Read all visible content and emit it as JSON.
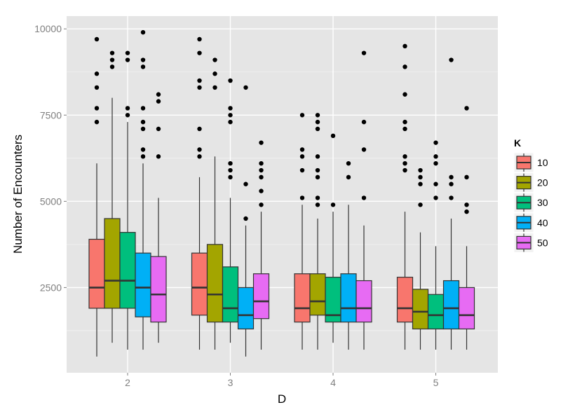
{
  "chart_data": {
    "type": "boxplot",
    "title": "",
    "xlabel": "D",
    "ylabel": "Number of Encounters",
    "categories": [
      "2",
      "3",
      "4",
      "5"
    ],
    "yticks": [
      2500,
      5000,
      7500,
      10000
    ],
    "ytick_labels": [
      "2500",
      "5000",
      "7500",
      "10000"
    ],
    "ylim": [
      30,
      10370
    ],
    "grid": true,
    "legend": {
      "title": "K",
      "placement": "right",
      "entries": [
        "10",
        "20",
        "30",
        "40",
        "50"
      ]
    },
    "colors": [
      "#F8766D",
      "#A3A500",
      "#00BF7D",
      "#00B0F6",
      "#E76BF3"
    ],
    "series": [
      {
        "name": "10",
        "boxes": [
          {
            "low": 500,
            "q1": 1900,
            "median": 2500,
            "q3": 3900,
            "high": 6100,
            "outliers": [
              9700,
              8700,
              8300,
              7700,
              7300
            ]
          },
          {
            "low": 700,
            "q1": 1700,
            "median": 2500,
            "q3": 3500,
            "high": 5700,
            "outliers": [
              9700,
              9300,
              8500,
              8300,
              7100,
              6500,
              6300
            ]
          },
          {
            "low": 700,
            "q1": 1500,
            "median": 1900,
            "q3": 2900,
            "high": 4900,
            "outliers": [
              7500,
              6500,
              6300,
              5900,
              5100
            ]
          },
          {
            "low": 700,
            "q1": 1500,
            "median": 1900,
            "q3": 2800,
            "high": 4700,
            "outliers": [
              9500,
              8900,
              8100,
              7300,
              7100,
              6300,
              6100,
              5900
            ]
          }
        ]
      },
      {
        "name": "20",
        "boxes": [
          {
            "low": 900,
            "q1": 1900,
            "median": 2700,
            "q3": 4500,
            "high": 8000,
            "outliers": [
              9300,
              9100,
              8900
            ]
          },
          {
            "low": 700,
            "q1": 1500,
            "median": 2300,
            "q3": 3750,
            "high": 6300,
            "outliers": [
              9100,
              8700,
              8300
            ]
          },
          {
            "low": 700,
            "q1": 1700,
            "median": 2100,
            "q3": 2900,
            "high": 4500,
            "outliers": [
              7500,
              7300,
              7100,
              6300,
              5900,
              5700,
              5100,
              4900
            ]
          },
          {
            "low": 700,
            "q1": 1300,
            "median": 1800,
            "q3": 2450,
            "high": 4100,
            "outliers": [
              5900,
              5700,
              5500,
              4900
            ]
          }
        ]
      },
      {
        "name": "30",
        "boxes": [
          {
            "low": 700,
            "q1": 1900,
            "median": 2700,
            "q3": 4100,
            "high": 7300,
            "outliers": [
              9300,
              9100,
              7700,
              7500
            ]
          },
          {
            "low": 900,
            "q1": 1500,
            "median": 1900,
            "q3": 3100,
            "high": 5100,
            "outliers": [
              8500,
              7700,
              7500,
              7300,
              6100,
              5900,
              5700
            ]
          },
          {
            "low": 900,
            "q1": 1500,
            "median": 1700,
            "q3": 2800,
            "high": 4700,
            "outliers": [
              6900,
              4900
            ]
          },
          {
            "low": 700,
            "q1": 1300,
            "median": 1700,
            "q3": 2300,
            "high": 3700,
            "outliers": [
              6700,
              6300,
              6100,
              5500,
              5100
            ]
          }
        ]
      },
      {
        "name": "40",
        "boxes": [
          {
            "low": 700,
            "q1": 1650,
            "median": 2500,
            "q3": 3500,
            "high": 6100,
            "outliers": [
              9900,
              9100,
              8900,
              7700,
              7300,
              7100,
              6500,
              6300
            ]
          },
          {
            "low": 500,
            "q1": 1300,
            "median": 1700,
            "q3": 2500,
            "high": 4300,
            "outliers": [
              8300,
              5500,
              4500
            ]
          },
          {
            "low": 700,
            "q1": 1500,
            "median": 1900,
            "q3": 2900,
            "high": 4900,
            "outliers": [
              6100,
              5700
            ]
          },
          {
            "low": 700,
            "q1": 1300,
            "median": 1900,
            "q3": 2700,
            "high": 4500,
            "outliers": [
              9100,
              5700,
              5500,
              5100
            ]
          }
        ]
      },
      {
        "name": "50",
        "boxes": [
          {
            "low": 900,
            "q1": 1500,
            "median": 2300,
            "q3": 3400,
            "high": 5100,
            "outliers": [
              8100,
              7900,
              7100,
              6300
            ]
          },
          {
            "low": 700,
            "q1": 1600,
            "median": 2100,
            "q3": 2900,
            "high": 4700,
            "outliers": [
              6700,
              6100,
              5900,
              5700,
              5300,
              4900
            ]
          },
          {
            "low": 700,
            "q1": 1500,
            "median": 1900,
            "q3": 2700,
            "high": 4300,
            "outliers": [
              9300,
              7300,
              6500,
              5100
            ]
          },
          {
            "low": 700,
            "q1": 1300,
            "median": 1700,
            "q3": 2500,
            "high": 3700,
            "outliers": [
              7700,
              5700,
              4900,
              4700
            ]
          }
        ]
      }
    ]
  }
}
